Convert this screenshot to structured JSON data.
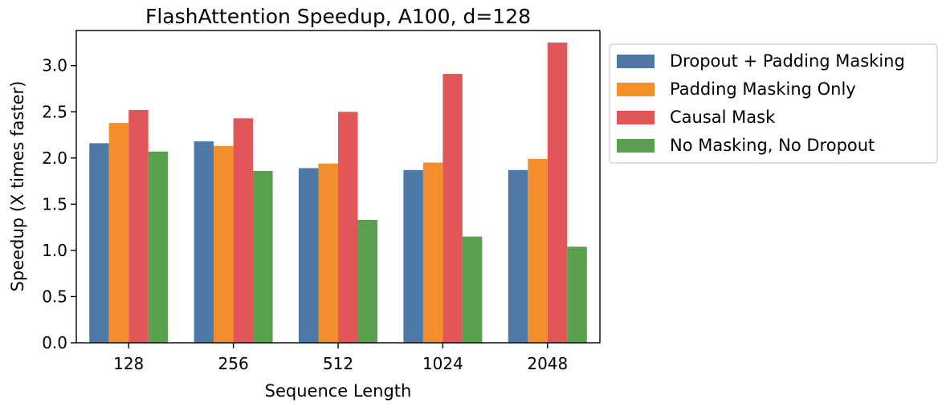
{
  "chart_data": {
    "type": "bar",
    "title": "FlashAttention Speedup, A100, d=128",
    "xlabel": "Sequence Length",
    "ylabel": "Speedup (X times faster)",
    "categories": [
      "128",
      "256",
      "512",
      "1024",
      "2048"
    ],
    "ylim": [
      0,
      3.38
    ],
    "yticks": [
      "0.0",
      "0.5",
      "1.0",
      "1.5",
      "2.0",
      "2.5",
      "3.0"
    ],
    "grid": false,
    "legend_position": "outside-right-top",
    "series": [
      {
        "name": "Dropout + Padding Masking",
        "color": "#4e79a7",
        "values": [
          2.16,
          2.18,
          1.89,
          1.87,
          1.87
        ]
      },
      {
        "name": "Padding Masking Only",
        "color": "#f28e2b",
        "values": [
          2.38,
          2.13,
          1.94,
          1.95,
          1.99
        ]
      },
      {
        "name": "Causal Mask",
        "color": "#e15759",
        "values": [
          2.52,
          2.43,
          2.5,
          2.91,
          3.25
        ]
      },
      {
        "name": "No Masking, No Dropout",
        "color": "#59a14f",
        "values": [
          2.07,
          1.86,
          1.33,
          1.15,
          1.04
        ]
      }
    ]
  }
}
